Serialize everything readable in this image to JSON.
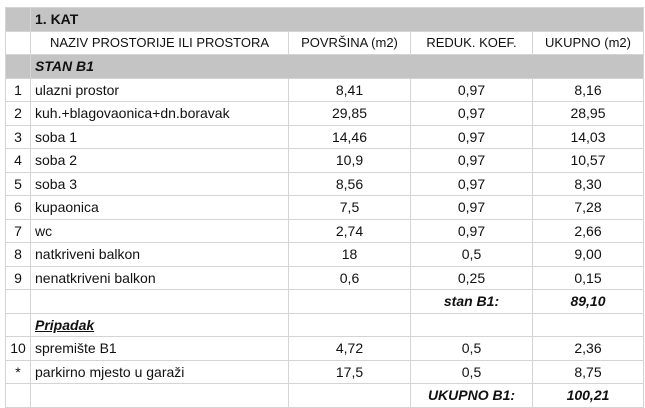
{
  "title": "1. KAT",
  "headers": [
    "NAZIV PROSTORIJE ILI PROSTORA",
    "POVRŠINA (m2)",
    "REDUK. KOEF.",
    "UKUPNO (m2)"
  ],
  "section1": "STAN B1",
  "rows": [
    [
      "1",
      "ulazni prostor",
      "8,41",
      "0,97",
      "8,16"
    ],
    [
      "2",
      "kuh.+blagovaonica+dn.boravak",
      "29,85",
      "0,97",
      "28,95"
    ],
    [
      "3",
      "soba 1",
      "14,46",
      "0,97",
      "14,03"
    ],
    [
      "4",
      "soba 2",
      "10,9",
      "0,97",
      "10,57"
    ],
    [
      "5",
      "soba 3",
      "8,56",
      "0,97",
      "8,30"
    ],
    [
      "6",
      "kupaonica",
      "7,5",
      "0,97",
      "7,28"
    ],
    [
      "7",
      "wc",
      "2,74",
      "0,97",
      "2,66"
    ],
    [
      "8",
      "natkriveni balkon",
      "18",
      "0,5",
      "9,00"
    ],
    [
      "9",
      "nenatkriveni balkon",
      "0,6",
      "0,25",
      "0,15"
    ]
  ],
  "subtotal": {
    "label": "stan B1:",
    "value": "89,10"
  },
  "section2": "Pripadak",
  "rows2": [
    [
      "10",
      "spremište B1",
      "4,72",
      "0,5",
      "2,36"
    ],
    [
      "*",
      "parkirno mjesto u garaži",
      "17,5",
      "0,5",
      "8,75"
    ]
  ],
  "total": {
    "label": "UKUPNO B1:",
    "value": "100,21"
  }
}
